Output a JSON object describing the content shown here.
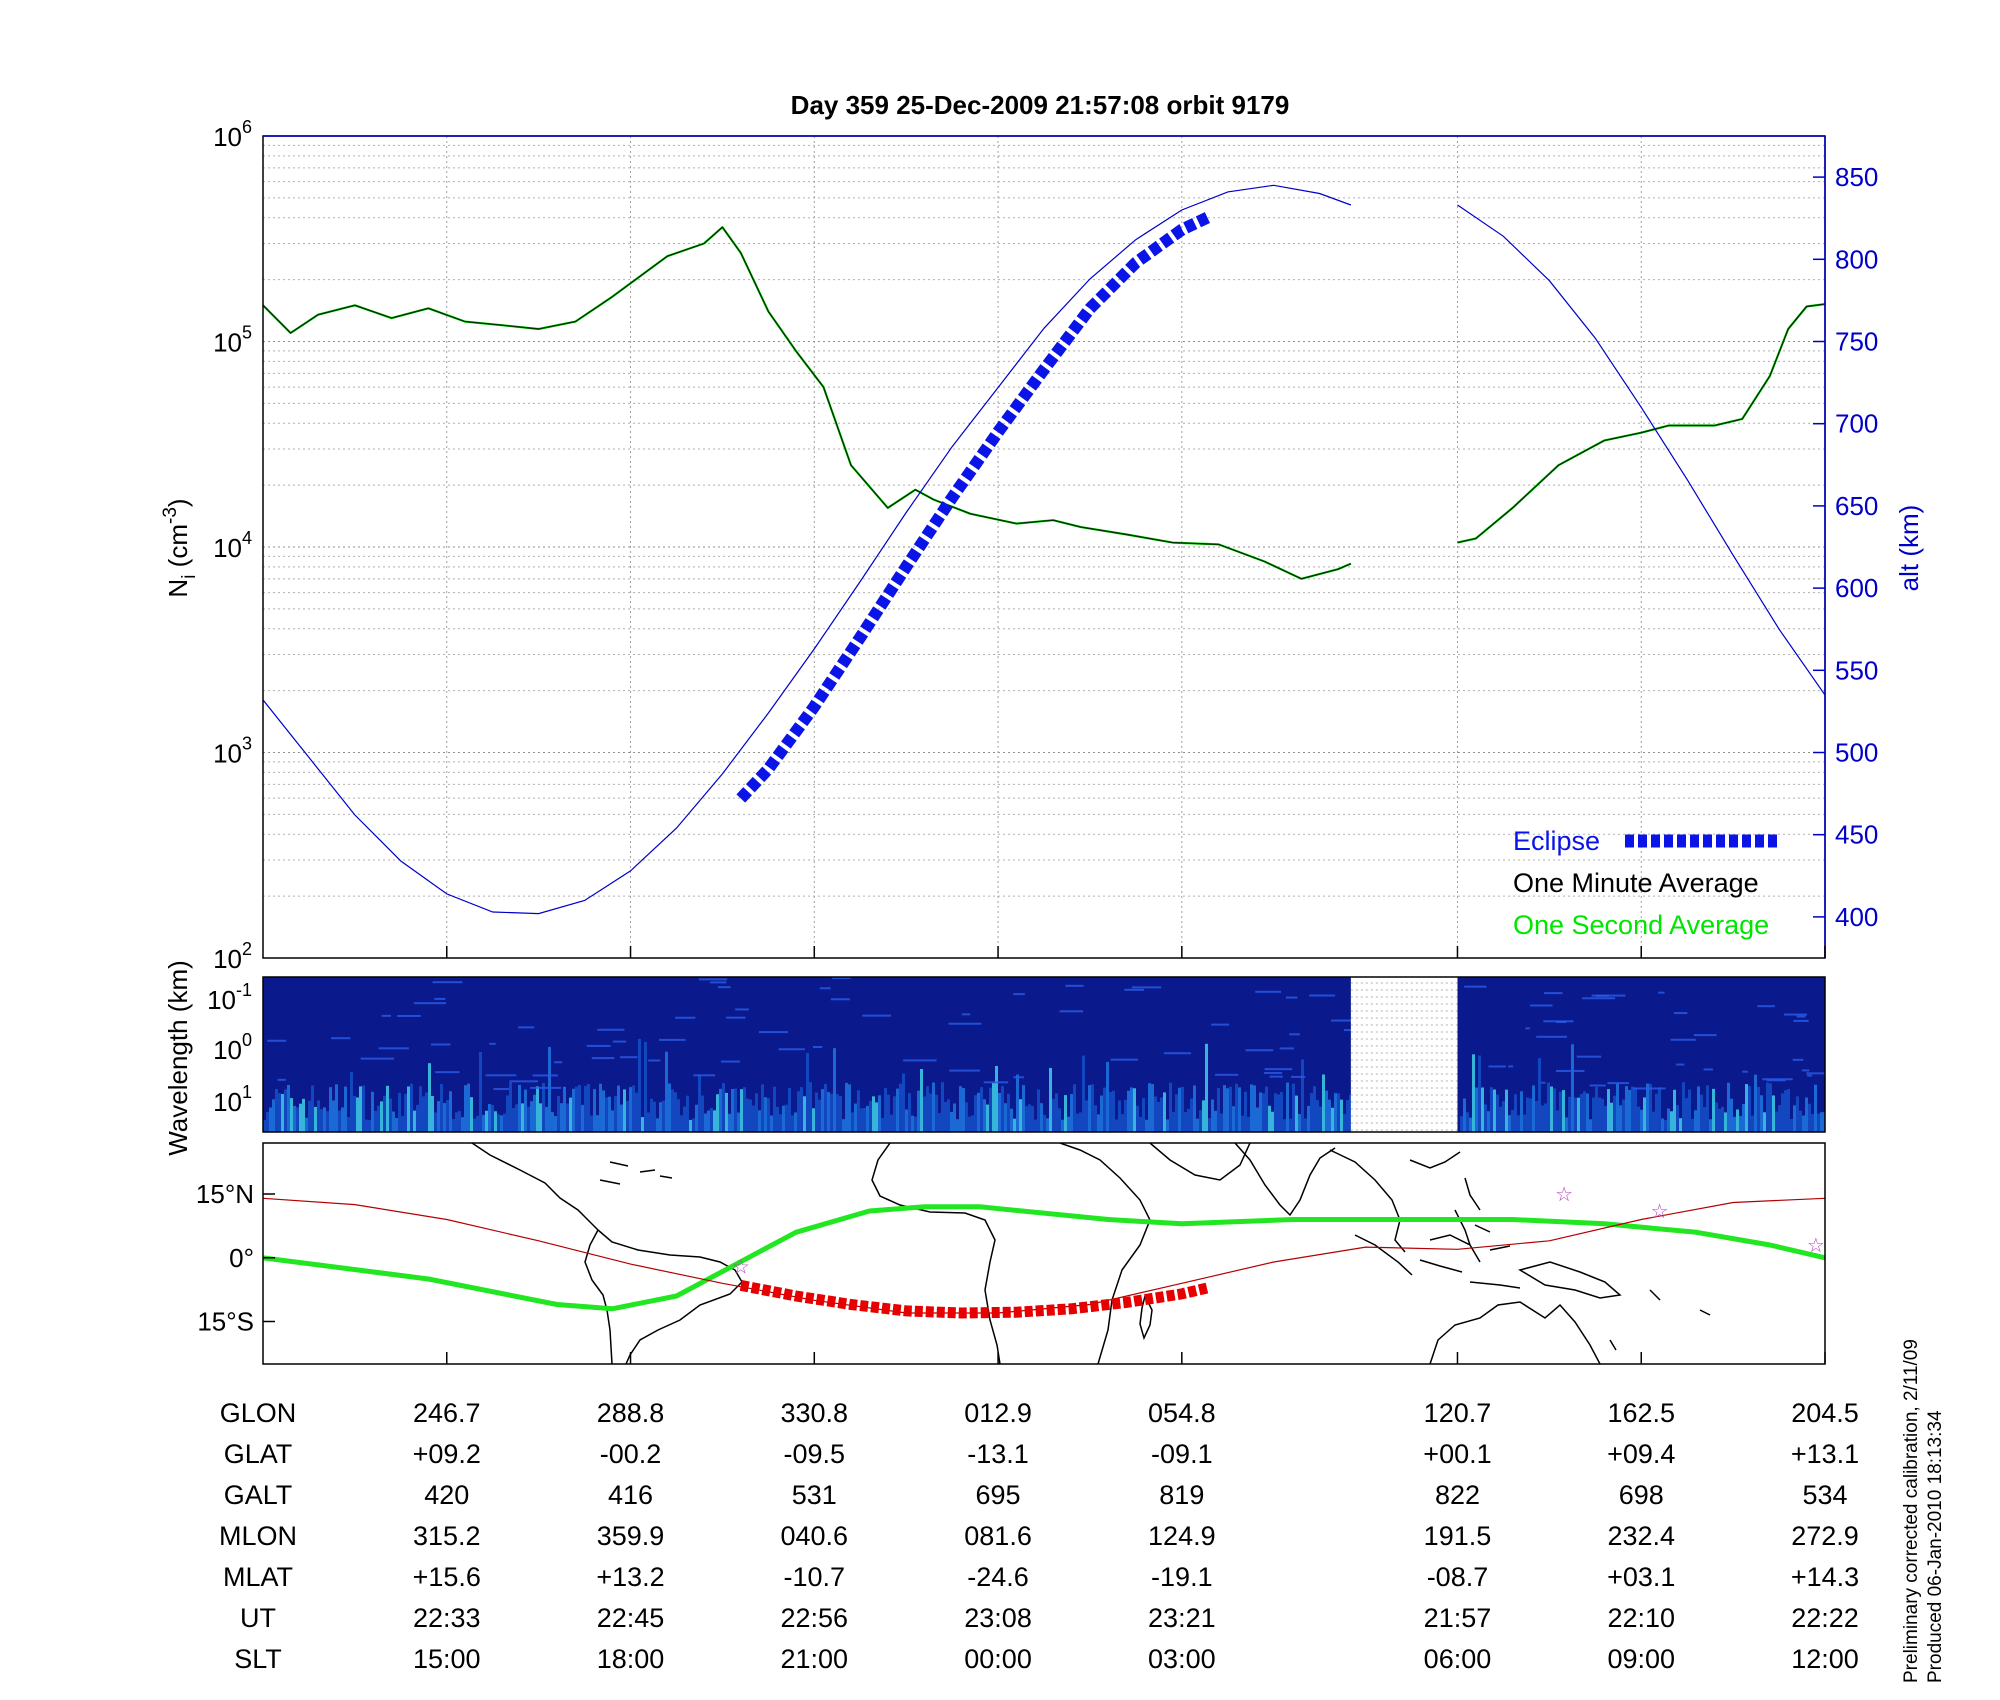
{
  "title": "Day 359  25-Dec-2009 21:57:08   orbit 9179",
  "colors": {
    "altitude": "#0000c8",
    "density_minute": "#003300",
    "density_second": "#00e600",
    "eclipse": "#0a14e6",
    "ground_track": "#b40000",
    "ground_track_eclipse": "#e60000",
    "mag_equator": "#22e622",
    "stars": "#c040c0",
    "spectrogram_bg": "#0a1a8c"
  },
  "chart_data": [
    {
      "type": "line",
      "panel": "density-altitude",
      "ylabel": "N",
      "ylabel_sub": "i",
      "ylabel_units": "(cm",
      "ylabel_units_sup": "-3",
      "ylabel_units_close": ")",
      "y_scale": "log",
      "ylim": [
        100,
        1000000
      ],
      "y_ticks": [
        {
          "base": "10",
          "exp": "2"
        },
        {
          "base": "10",
          "exp": "3"
        },
        {
          "base": "10",
          "exp": "4"
        },
        {
          "base": "10",
          "exp": "5"
        },
        {
          "base": "10",
          "exp": "6"
        }
      ],
      "y2label": "alt (km)",
      "y2lim": [
        375,
        875
      ],
      "y2_ticks": [
        "400",
        "450",
        "500",
        "550",
        "600",
        "650",
        "700",
        "750",
        "800",
        "850"
      ],
      "xlim": [
        0,
        8.5
      ],
      "grid": true,
      "legend_position": "bottom-right",
      "legend": [
        "Eclipse",
        "One Minute Average",
        "One Second Average"
      ],
      "series": [
        {
          "name": "One Minute Average",
          "x": [
            0,
            0.15,
            0.3,
            0.5,
            0.7,
            0.9,
            1.1,
            1.3,
            1.5,
            1.7,
            1.9,
            2.2,
            2.4,
            2.5,
            2.6,
            2.75,
            2.9,
            3.05,
            3.2,
            3.4,
            3.55,
            3.65,
            3.85,
            4.1,
            4.3,
            4.45,
            4.7,
            4.95,
            5.2,
            5.45,
            5.65,
            5.85,
            5.92
          ],
          "y": [
            150000,
            110000,
            135000,
            150000,
            130000,
            145000,
            125000,
            120000,
            115000,
            125000,
            165000,
            260000,
            300000,
            360000,
            270000,
            140000,
            90000,
            60000,
            25000,
            15500,
            19000,
            17000,
            14500,
            13000,
            13500,
            12500,
            11500,
            10500,
            10300,
            8500,
            7000,
            7800,
            8300
          ]
        },
        {
          "name": "One Minute Average",
          "x": [
            6.5,
            6.6,
            6.8,
            7.05,
            7.3,
            7.5,
            7.65,
            7.9,
            8.05,
            8.2,
            8.3,
            8.4,
            8.5
          ],
          "y": [
            10500,
            11000,
            15500,
            25000,
            33000,
            36000,
            39000,
            39000,
            42000,
            68000,
            115000,
            148000,
            152000
          ]
        },
        {
          "name": "altitude",
          "axis": "right",
          "x": [
            0,
            0.25,
            0.5,
            0.75,
            1.0,
            1.25,
            1.5,
            1.75,
            2.0,
            2.25,
            2.5,
            2.75,
            3.0,
            3.25,
            3.5,
            3.75,
            4.0,
            4.25,
            4.5,
            4.75,
            5.0,
            5.25,
            5.5,
            5.75,
            5.92
          ],
          "y": [
            532,
            497,
            462,
            434,
            414,
            403,
            402,
            410,
            428,
            454,
            487,
            524,
            563,
            604,
            646,
            686,
            722,
            758,
            788,
            812,
            830,
            841,
            845,
            840,
            833
          ]
        },
        {
          "name": "altitude",
          "axis": "right",
          "x": [
            6.5,
            6.75,
            7.0,
            7.25,
            7.5,
            7.75,
            8.0,
            8.25,
            8.5
          ],
          "y": [
            833,
            814,
            787,
            752,
            710,
            666,
            620,
            575,
            535
          ]
        },
        {
          "name": "Eclipse",
          "axis": "right",
          "x": [
            2.6,
            2.75,
            3.0,
            3.25,
            3.5,
            3.75,
            4.0,
            4.25,
            4.5,
            4.75,
            5.0,
            5.15
          ],
          "y": [
            472,
            490,
            528,
            570,
            613,
            655,
            695,
            733,
            770,
            798,
            818,
            826
          ]
        }
      ]
    },
    {
      "type": "heatmap",
      "panel": "spectrogram",
      "ylabel": "Wavelength (km)",
      "y_ticks": [
        {
          "base": "10",
          "exp": "-1"
        },
        {
          "base": "10",
          "exp": "0"
        },
        {
          "base": "10",
          "exp": "1"
        }
      ],
      "data_gap_x": [
        5.92,
        6.5
      ]
    },
    {
      "type": "line",
      "panel": "ground-track-map",
      "y_ticks": [
        "15°N",
        "0°",
        "15°S"
      ],
      "ylim": [
        -25,
        27
      ],
      "series": [
        {
          "name": "magnetic equator",
          "x": [
            0,
            0.9,
            1.6,
            1.9,
            2.25,
            2.9,
            3.3,
            3.6,
            3.9,
            4.6,
            5.0,
            5.6,
            6.3,
            6.8,
            7.3,
            7.8,
            8.2,
            8.5
          ],
          "y": [
            0,
            -5,
            -11,
            -12,
            -9,
            6,
            11,
            12,
            12,
            9,
            8,
            9,
            9,
            9,
            8,
            6,
            3,
            0
          ]
        },
        {
          "name": "ground track",
          "x": [
            0,
            0.5,
            1.0,
            1.5,
            2.0,
            2.5,
            3.0,
            3.5,
            4.0,
            4.5,
            5.0,
            5.5,
            6.0,
            6.5,
            7.0,
            7.5,
            8.0,
            8.5
          ],
          "y": [
            14,
            12.5,
            9,
            4,
            -1.5,
            -6,
            -10,
            -13,
            -13,
            -11,
            -6,
            -1,
            2.5,
            2,
            4,
            9,
            13,
            14
          ]
        },
        {
          "name": "ground track eclipse",
          "x": [
            2.6,
            2.9,
            3.2,
            3.5,
            3.8,
            4.1,
            4.4,
            4.7,
            5.0,
            5.15
          ],
          "y": [
            -6.5,
            -9,
            -11,
            -12.5,
            -13,
            -12.8,
            -12,
            -10.5,
            -8.5,
            -7
          ]
        }
      ],
      "stars_x": [
        2.6,
        7.08,
        7.6,
        8.45
      ],
      "stars_y": [
        -2,
        15,
        11,
        3
      ]
    }
  ],
  "table": {
    "row_labels": [
      "GLON",
      "GLAT",
      "GALT",
      "MLON",
      "MLAT",
      "UT",
      "SLT"
    ],
    "columns_x": [
      1,
      2,
      3,
      4,
      5,
      6.5,
      7.5,
      8.5
    ],
    "rows": [
      [
        "246.7",
        "288.8",
        "330.8",
        "012.9",
        "054.8",
        "120.7",
        "162.5",
        "204.5"
      ],
      [
        "+09.2",
        "-00.2",
        "-09.5",
        "-13.1",
        "-09.1",
        "+00.1",
        "+09.4",
        "+13.1"
      ],
      [
        "420",
        "416",
        "531",
        "695",
        "819",
        "822",
        "698",
        "534"
      ],
      [
        "315.2",
        "359.9",
        "040.6",
        "081.6",
        "124.9",
        "191.5",
        "232.4",
        "272.9"
      ],
      [
        "+15.6",
        "+13.2",
        "-10.7",
        "-24.6",
        "-19.1",
        "-08.7",
        "+03.1",
        "+14.3"
      ],
      [
        "22:33",
        "22:45",
        "22:56",
        "23:08",
        "23:21",
        "21:57",
        "22:10",
        "22:22"
      ],
      [
        "15:00",
        "18:00",
        "21:00",
        "00:00",
        "03:00",
        "06:00",
        "09:00",
        "12:00"
      ]
    ]
  },
  "footnote": {
    "line1": "Preliminary corrected calibration, 2/11/09",
    "line2": "Produced 06-Jan-2010 18:13:34"
  }
}
